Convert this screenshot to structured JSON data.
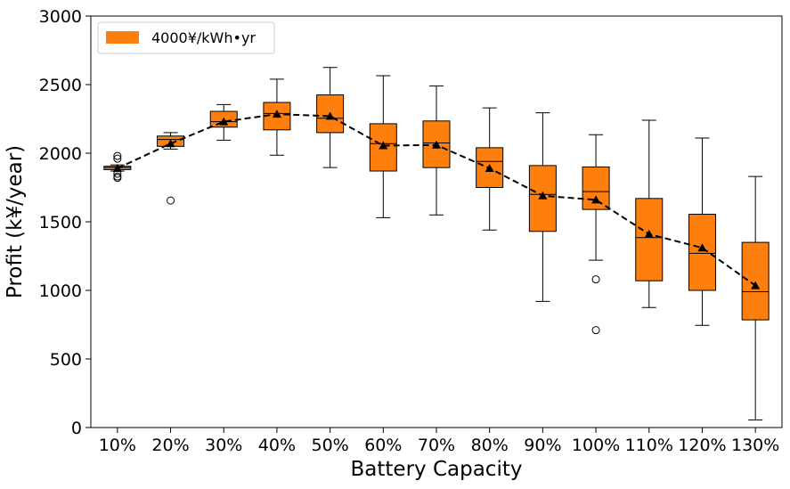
{
  "chart_data": {
    "type": "box",
    "title": "",
    "xlabel": "Battery Capacity",
    "ylabel": "Profit (k¥/year)",
    "ylim": [
      0,
      3000
    ],
    "yticks": [
      0,
      500,
      1000,
      1500,
      2000,
      2500,
      3000
    ],
    "grid": false,
    "legend_position": "top-left",
    "colors": {
      "box_fill": "#ff7f0e",
      "edge": "#000000",
      "mean_line": "#000000"
    },
    "series": [
      {
        "name": "4000¥/kWh•yr",
        "categories": [
          "10%",
          "20%",
          "30%",
          "40%",
          "50%",
          "60%",
          "70%",
          "80%",
          "90%",
          "100%",
          "110%",
          "120%",
          "130%"
        ],
        "boxes": [
          {
            "whisker_low": 1870,
            "q1": 1880,
            "median": 1895,
            "q3": 1905,
            "whisker_high": 1915,
            "mean": 1890,
            "outliers": [
              1820,
              1830,
              1850,
              1960,
              1980
            ]
          },
          {
            "whisker_low": 2030,
            "q1": 2050,
            "median": 2100,
            "q3": 2125,
            "whisker_high": 2150,
            "mean": 2070,
            "outliers": [
              1655
            ]
          },
          {
            "whisker_low": 2095,
            "q1": 2190,
            "median": 2230,
            "q3": 2305,
            "whisker_high": 2355,
            "mean": 2230,
            "outliers": []
          },
          {
            "whisker_low": 1985,
            "q1": 2170,
            "median": 2290,
            "q3": 2370,
            "whisker_high": 2540,
            "mean": 2285,
            "outliers": []
          },
          {
            "whisker_low": 1895,
            "q1": 2150,
            "median": 2255,
            "q3": 2425,
            "whisker_high": 2625,
            "mean": 2270,
            "outliers": []
          },
          {
            "whisker_low": 1530,
            "q1": 1870,
            "median": 2070,
            "q3": 2215,
            "whisker_high": 2565,
            "mean": 2055,
            "outliers": []
          },
          {
            "whisker_low": 1550,
            "q1": 1895,
            "median": 2075,
            "q3": 2235,
            "whisker_high": 2490,
            "mean": 2060,
            "outliers": []
          },
          {
            "whisker_low": 1440,
            "q1": 1750,
            "median": 1940,
            "q3": 2040,
            "whisker_high": 2330,
            "mean": 1890,
            "outliers": []
          },
          {
            "whisker_low": 920,
            "q1": 1430,
            "median": 1700,
            "q3": 1910,
            "whisker_high": 2295,
            "mean": 1690,
            "outliers": []
          },
          {
            "whisker_low": 1220,
            "q1": 1590,
            "median": 1720,
            "q3": 1900,
            "whisker_high": 2135,
            "mean": 1660,
            "outliers": [
              1080,
              710
            ]
          },
          {
            "whisker_low": 875,
            "q1": 1070,
            "median": 1385,
            "q3": 1670,
            "whisker_high": 2240,
            "mean": 1410,
            "outliers": []
          },
          {
            "whisker_low": 745,
            "q1": 1000,
            "median": 1270,
            "q3": 1555,
            "whisker_high": 2110,
            "mean": 1310,
            "outliers": []
          },
          {
            "whisker_low": 55,
            "q1": 785,
            "median": 990,
            "q3": 1350,
            "whisker_high": 1830,
            "mean": 1035,
            "outliers": []
          }
        ]
      }
    ]
  }
}
